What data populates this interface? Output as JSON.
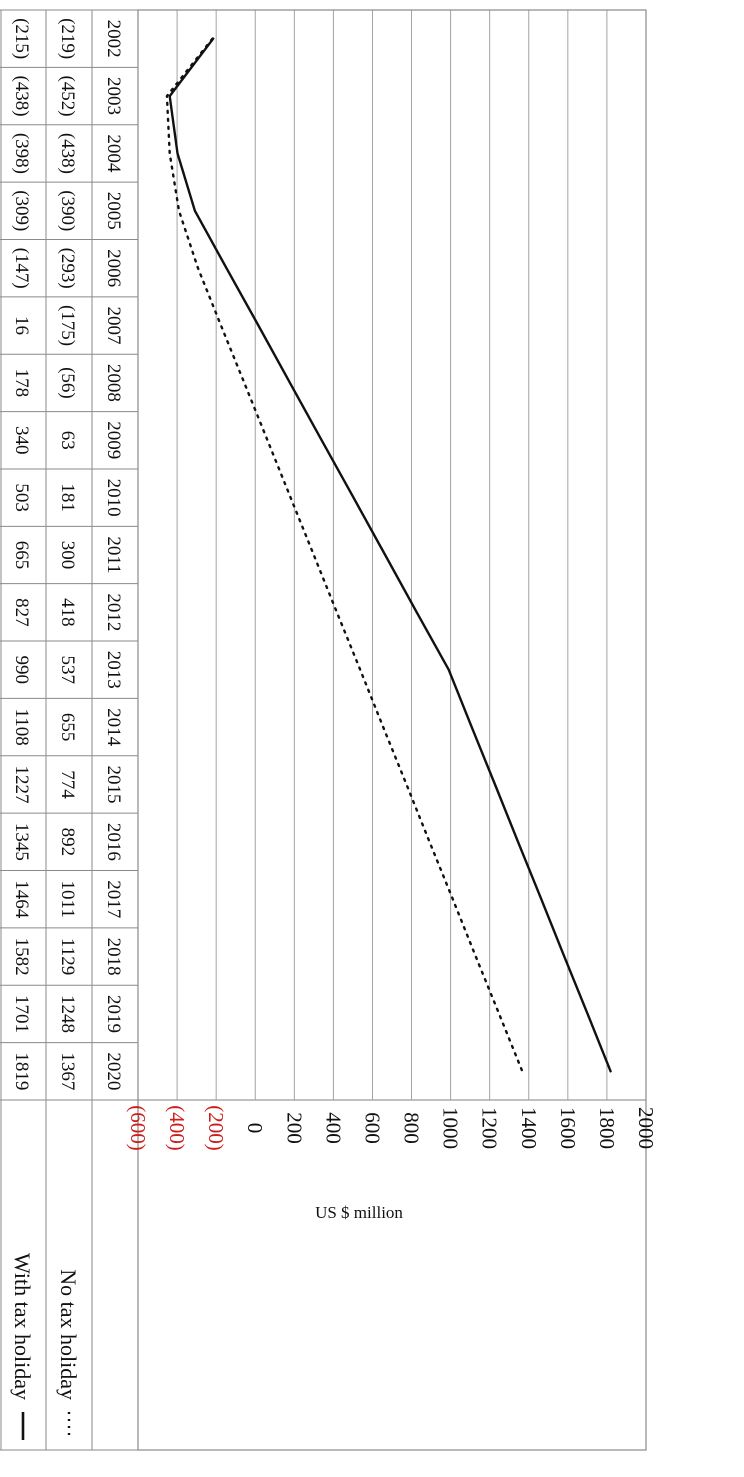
{
  "chart_data": {
    "type": "line",
    "title": "",
    "xlabel": "",
    "ylabel": "US $ million",
    "ylim": [
      -600,
      2000
    ],
    "yticks": [
      "2000",
      "1800",
      "1600",
      "1400",
      "1200",
      "1000",
      "800",
      "600",
      "400",
      "200",
      "0",
      "(200)",
      "(400)",
      "(600)"
    ],
    "negative_tick_color": "#cc1f1f",
    "grid": true,
    "legend_placement": "bottom-left (data table rows)",
    "categories": [
      "2002",
      "2003",
      "2004",
      "2005",
      "2006",
      "2007",
      "2008",
      "2009",
      "2010",
      "2011",
      "2012",
      "2013",
      "2014",
      "2015",
      "2016",
      "2017",
      "2018",
      "2019",
      "2020"
    ],
    "series": [
      {
        "name": "No tax holiday",
        "style": "dotted",
        "values": [
          -219,
          -452,
          -438,
          -390,
          -293,
          -175,
          -56,
          63,
          181,
          300,
          418,
          537,
          655,
          774,
          892,
          1011,
          1129,
          1248,
          1367
        ],
        "labels": [
          "(219)",
          "(452)",
          "(438)",
          "(390)",
          "(293)",
          "(175)",
          "(56)",
          "63",
          "181",
          "300",
          "418",
          "537",
          "655",
          "774",
          "892",
          "1011",
          "1129",
          "1248",
          "1367"
        ]
      },
      {
        "name": "With tax holiday",
        "style": "solid",
        "values": [
          -215,
          -438,
          -398,
          -309,
          -147,
          16,
          178,
          340,
          503,
          665,
          827,
          990,
          1108,
          1227,
          1345,
          1464,
          1582,
          1701,
          1819
        ],
        "labels": [
          "(215)",
          "(438)",
          "(398)",
          "(309)",
          "(147)",
          "16",
          "178",
          "340",
          "503",
          "665",
          "827",
          "990",
          "1108",
          "1227",
          "1345",
          "1464",
          "1582",
          "1701",
          "1819"
        ]
      }
    ]
  }
}
